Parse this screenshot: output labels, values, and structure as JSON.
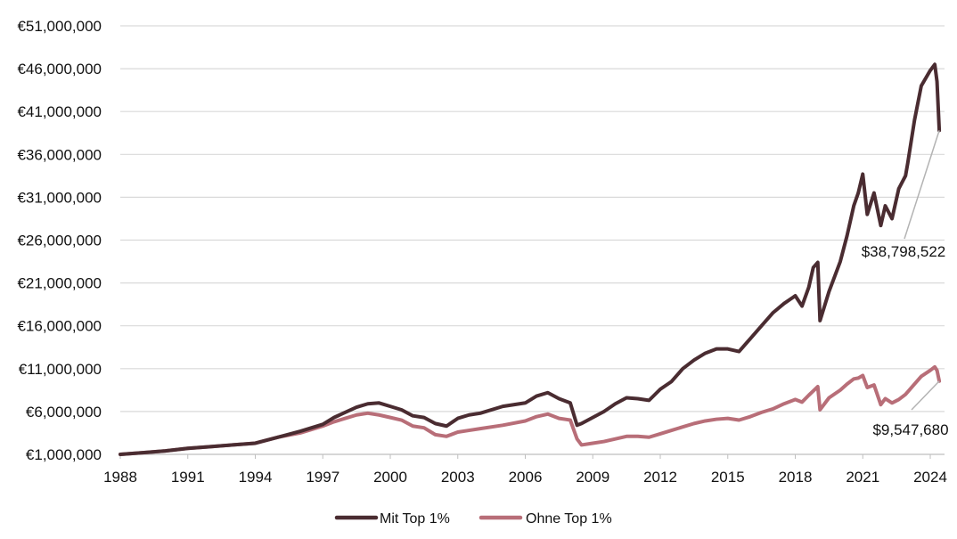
{
  "chart_data": {
    "type": "line",
    "title": "",
    "xlabel": "",
    "ylabel": "",
    "grid": true,
    "legend_position": "bottom",
    "xlim": [
      1988,
      2024.5
    ],
    "ylim": [
      1000000,
      51000000
    ],
    "x_ticks": [
      1988,
      1991,
      1994,
      1997,
      2000,
      2003,
      2006,
      2009,
      2012,
      2015,
      2018,
      2021,
      2024
    ],
    "x_tick_labels": [
      "1988",
      "1991",
      "1994",
      "1997",
      "2000",
      "2003",
      "2006",
      "2009",
      "2012",
      "2015",
      "2018",
      "2021",
      "2024"
    ],
    "y_ticks": [
      1000000,
      6000000,
      11000000,
      16000000,
      21000000,
      26000000,
      31000000,
      36000000,
      41000000,
      46000000,
      51000000
    ],
    "y_tick_labels": [
      "€1,000,000",
      "€6,000,000",
      "€11,000,000",
      "€16,000,000",
      "€21,000,000",
      "€26,000,000",
      "€31,000,000",
      "€36,000,000",
      "€41,000,000",
      "€46,000,000",
      "€51,000,000"
    ],
    "series": [
      {
        "name": "Mit Top 1%",
        "color": "#4a2c31",
        "x": [
          1988,
          1989,
          1990,
          1991,
          1992,
          1993,
          1994,
          1995,
          1996,
          1997,
          1997.5,
          1998,
          1998.5,
          1999,
          1999.5,
          2000,
          2000.5,
          2001,
          2001.5,
          2002,
          2002.5,
          2003,
          2003.5,
          2004,
          2005,
          2006,
          2006.5,
          2007,
          2007.5,
          2008,
          2008.3,
          2008.5,
          2009,
          2009.5,
          2010,
          2010.5,
          2011,
          2011.5,
          2012,
          2012.5,
          2013,
          2013.5,
          2014,
          2014.5,
          2015,
          2015.5,
          2016,
          2016.5,
          2017,
          2017.5,
          2018,
          2018.3,
          2018.6,
          2018.8,
          2019,
          2019.1,
          2019.5,
          2020,
          2020.3,
          2020.6,
          2020.8,
          2021,
          2021.2,
          2021.5,
          2021.8,
          2022,
          2022.3,
          2022.6,
          2022.9,
          2023,
          2023.3,
          2023.6,
          2024,
          2024.2,
          2024.3,
          2024.4
        ],
        "values": [
          1000000,
          1200000,
          1400000,
          1700000,
          1900000,
          2100000,
          2300000,
          3000000,
          3700000,
          4500000,
          5300000,
          5900000,
          6500000,
          6900000,
          7000000,
          6600000,
          6200000,
          5500000,
          5300000,
          4600000,
          4300000,
          5200000,
          5600000,
          5800000,
          6600000,
          7000000,
          7800000,
          8200000,
          7500000,
          7000000,
          4400000,
          4600000,
          5300000,
          6000000,
          6900000,
          7600000,
          7500000,
          7300000,
          8600000,
          9500000,
          11000000,
          12000000,
          12800000,
          13300000,
          13300000,
          13000000,
          14500000,
          16000000,
          17500000,
          18600000,
          19500000,
          18300000,
          20500000,
          22800000,
          23400000,
          16600000,
          20000000,
          23500000,
          26500000,
          30000000,
          31500000,
          33700000,
          29000000,
          31500000,
          27700000,
          30000000,
          28500000,
          32000000,
          33500000,
          35000000,
          40000000,
          44000000,
          45800000,
          46500000,
          44500000,
          38800000
        ]
      },
      {
        "name": "Ohne Top 1%",
        "color": "#b86e78",
        "x": [
          1988,
          1989,
          1990,
          1991,
          1992,
          1993,
          1994,
          1995,
          1996,
          1997,
          1997.5,
          1998,
          1998.5,
          1999,
          1999.5,
          2000,
          2000.5,
          2001,
          2001.5,
          2002,
          2002.5,
          2003,
          2003.5,
          2004,
          2005,
          2006,
          2006.5,
          2007,
          2007.5,
          2008,
          2008.3,
          2008.5,
          2009,
          2009.5,
          2010,
          2010.5,
          2011,
          2011.5,
          2012,
          2012.5,
          2013,
          2013.5,
          2014,
          2014.5,
          2015,
          2015.5,
          2016,
          2016.5,
          2017,
          2017.5,
          2018,
          2018.3,
          2018.6,
          2018.8,
          2019,
          2019.1,
          2019.5,
          2020,
          2020.3,
          2020.6,
          2020.8,
          2021,
          2021.2,
          2021.5,
          2021.8,
          2022,
          2022.3,
          2022.6,
          2022.9,
          2023,
          2023.3,
          2023.6,
          2024,
          2024.2,
          2024.3,
          2024.4
        ],
        "values": [
          1000000,
          1200000,
          1400000,
          1700000,
          1900000,
          2100000,
          2300000,
          3000000,
          3500000,
          4300000,
          4800000,
          5200000,
          5600000,
          5800000,
          5600000,
          5300000,
          5000000,
          4300000,
          4100000,
          3300000,
          3100000,
          3600000,
          3800000,
          4000000,
          4400000,
          4900000,
          5400000,
          5700000,
          5200000,
          5000000,
          2800000,
          2100000,
          2300000,
          2500000,
          2800000,
          3100000,
          3100000,
          3000000,
          3400000,
          3800000,
          4200000,
          4600000,
          4900000,
          5100000,
          5200000,
          5000000,
          5400000,
          5900000,
          6300000,
          6900000,
          7400000,
          7100000,
          7900000,
          8400000,
          8900000,
          6200000,
          7600000,
          8500000,
          9200000,
          9800000,
          9900000,
          10200000,
          8800000,
          9100000,
          6800000,
          7500000,
          7000000,
          7400000,
          8000000,
          8300000,
          9200000,
          10100000,
          10800000,
          11200000,
          10800000,
          9547680
        ]
      }
    ],
    "annotations": [
      {
        "series": "Mit Top 1%",
        "text": "$38,798,522",
        "x": 2024.4,
        "y": 38800000
      },
      {
        "series": "Ohne Top 1%",
        "text": "$9,547,680",
        "x": 2024.4,
        "y": 9547680
      }
    ]
  }
}
